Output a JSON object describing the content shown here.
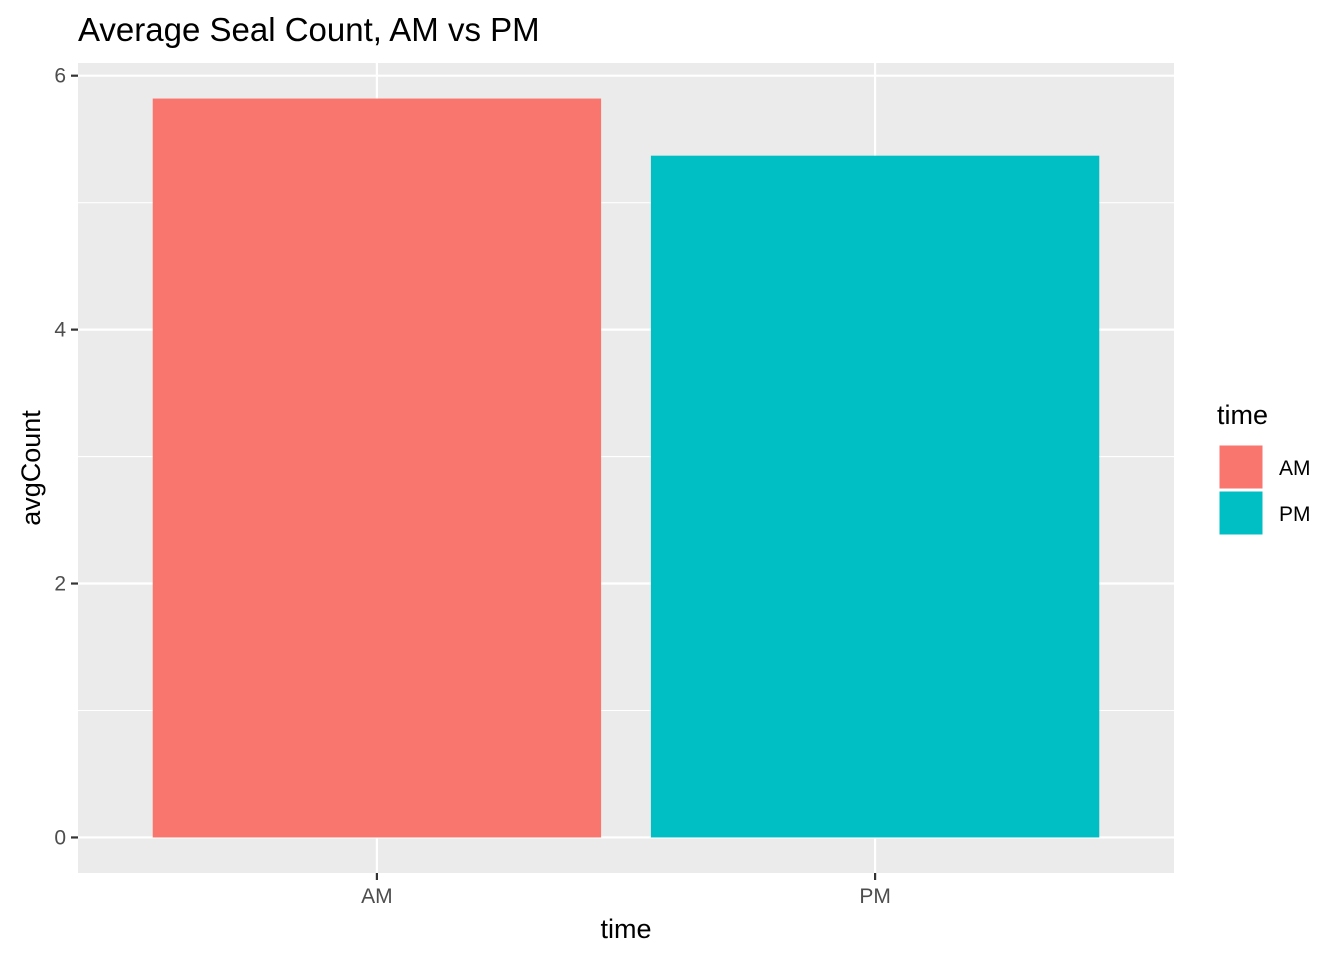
{
  "chart_data": {
    "type": "bar",
    "title": "Average Seal Count, AM vs PM",
    "xlabel": "time",
    "ylabel": "avgCount",
    "categories": [
      "AM",
      "PM"
    ],
    "values": [
      5.82,
      5.37
    ],
    "colors": [
      "#F8766D",
      "#00BFC4"
    ],
    "ylim": [
      -0.28,
      6.1
    ],
    "yticks": [
      0,
      2,
      4,
      6
    ],
    "yticks_labels": [
      "0",
      "2",
      "4",
      "6"
    ],
    "grid": true,
    "panel_background": "#EBEBEB",
    "legend": {
      "title": "time",
      "position": "right",
      "entries": [
        {
          "label": "AM",
          "color": "#F8766D"
        },
        {
          "label": "PM",
          "color": "#00BFC4"
        }
      ]
    }
  }
}
